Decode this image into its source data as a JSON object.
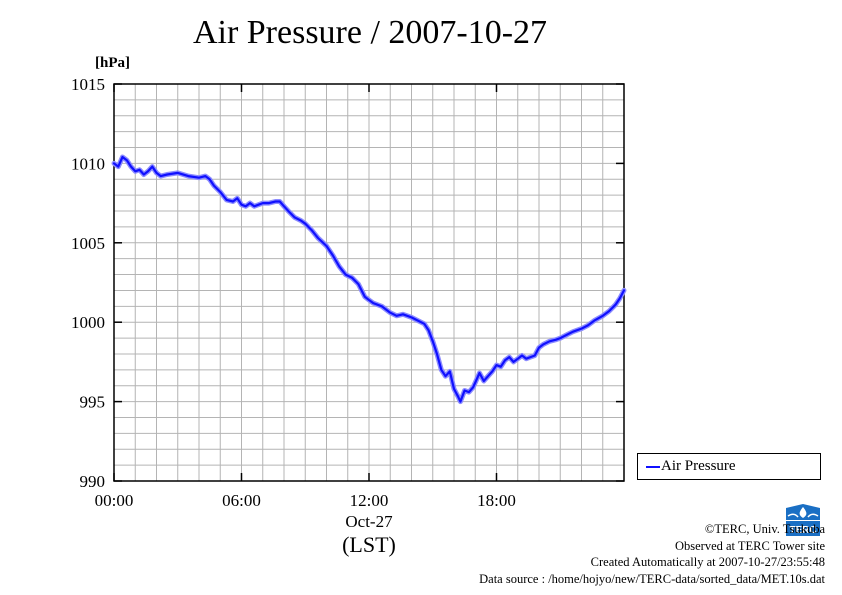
{
  "chart_data": {
    "type": "line",
    "title": "Air Pressure / 2007-10-27",
    "ylabel": "[hPa]",
    "xlabel": "(LST)",
    "x_date_label": "Oct-27",
    "x_ticks": [
      "00:00",
      "06:00",
      "12:00",
      "18:00"
    ],
    "y_ticks": [
      "1015",
      "1010",
      "1005",
      "1000",
      "995",
      "990"
    ],
    "ylim": [
      990,
      1015
    ],
    "xlim_hours": [
      0,
      24
    ],
    "grid": true,
    "legend_position": "bottom-right outside",
    "series": [
      {
        "name": "Air Pressure",
        "color": "#1010ff",
        "x_hours": [
          0.0,
          0.2,
          0.4,
          0.6,
          0.8,
          1.0,
          1.2,
          1.4,
          1.6,
          1.8,
          2.0,
          2.2,
          2.5,
          3.0,
          3.5,
          4.0,
          4.3,
          4.5,
          4.7,
          5.0,
          5.3,
          5.6,
          5.8,
          6.0,
          6.2,
          6.4,
          6.6,
          6.8,
          7.0,
          7.3,
          7.6,
          7.8,
          8.0,
          8.2,
          8.5,
          8.8,
          9.0,
          9.3,
          9.6,
          10.0,
          10.3,
          10.6,
          10.9,
          11.2,
          11.5,
          11.8,
          12.0,
          12.2,
          12.4,
          12.6,
          12.8,
          13.0,
          13.3,
          13.6,
          14.0,
          14.3,
          14.6,
          14.8,
          15.0,
          15.2,
          15.4,
          15.6,
          15.8,
          16.0,
          16.2,
          16.3,
          16.5,
          16.7,
          16.9,
          17.0,
          17.2,
          17.4,
          17.6,
          17.8,
          18.0,
          18.2,
          18.4,
          18.6,
          18.8,
          19.0,
          19.2,
          19.4,
          19.6,
          19.8,
          20.0,
          20.2,
          20.5,
          20.8,
          21.0,
          21.3,
          21.6,
          22.0,
          22.3,
          22.6,
          23.0,
          23.3,
          23.6,
          23.8,
          24.0
        ],
        "values": [
          1010.0,
          1009.8,
          1010.4,
          1010.2,
          1009.8,
          1009.5,
          1009.6,
          1009.3,
          1009.5,
          1009.8,
          1009.4,
          1009.2,
          1009.3,
          1009.4,
          1009.2,
          1009.1,
          1009.2,
          1009.0,
          1008.6,
          1008.2,
          1007.7,
          1007.6,
          1007.8,
          1007.4,
          1007.3,
          1007.5,
          1007.3,
          1007.4,
          1007.5,
          1007.5,
          1007.6,
          1007.6,
          1007.3,
          1007.0,
          1006.6,
          1006.4,
          1006.2,
          1005.8,
          1005.3,
          1004.8,
          1004.2,
          1003.5,
          1003.0,
          1002.8,
          1002.4,
          1001.6,
          1001.4,
          1001.2,
          1001.1,
          1001.0,
          1000.8,
          1000.6,
          1000.4,
          1000.5,
          1000.3,
          1000.1,
          999.9,
          999.5,
          998.8,
          998.0,
          997.0,
          996.6,
          996.9,
          995.8,
          995.3,
          995.0,
          995.7,
          995.6,
          995.9,
          996.2,
          996.8,
          996.3,
          996.6,
          996.9,
          997.3,
          997.2,
          997.6,
          997.8,
          997.5,
          997.7,
          997.9,
          997.7,
          997.8,
          997.9,
          998.4,
          998.6,
          998.8,
          998.9,
          999.0,
          999.2,
          999.4,
          999.6,
          999.8,
          1000.1,
          1000.4,
          1000.7,
          1001.1,
          1001.5,
          1002.0
        ]
      }
    ]
  },
  "credits": {
    "copyright": "©TERC, Univ. Tsukuba",
    "observed": "Observed at TERC Tower site",
    "created": "Created Automatically at 2007-10-27/23:55:48",
    "source": "Data source : /home/hojyo/new/TERC-data/sorted_data/MET.10s.dat"
  },
  "logo": {
    "text": "TERC",
    "color": "#1a6fc4"
  }
}
